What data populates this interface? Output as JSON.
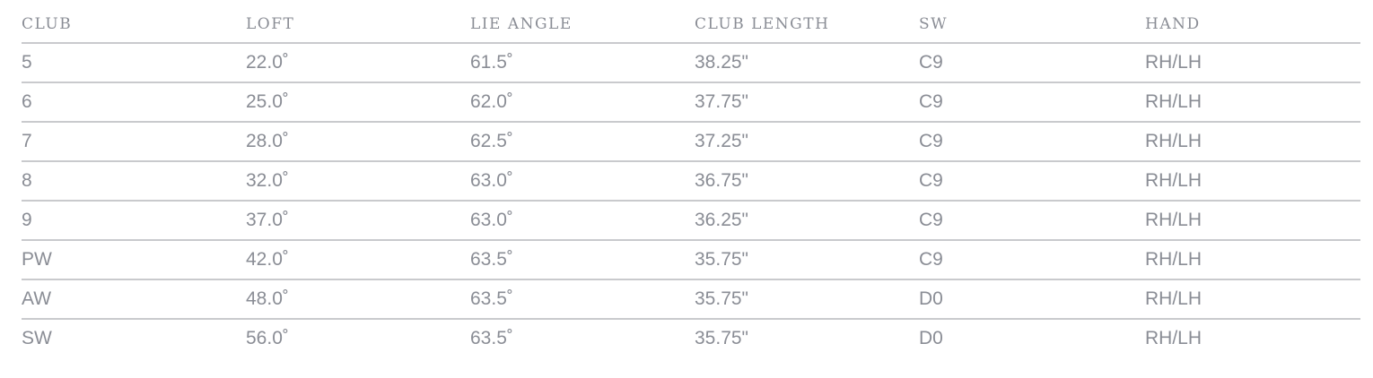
{
  "table": {
    "headers": [
      "CLUB",
      "LOFT",
      "LIE ANGLE",
      "CLUB LENGTH",
      "SW",
      "HAND"
    ],
    "rows": [
      [
        "5",
        "22.0˚",
        "61.5˚",
        "38.25\"",
        "C9",
        "RH/LH"
      ],
      [
        "6",
        "25.0˚",
        "62.0˚",
        "37.75\"",
        "C9",
        "RH/LH"
      ],
      [
        "7",
        "28.0˚",
        "62.5˚",
        "37.25\"",
        "C9",
        "RH/LH"
      ],
      [
        "8",
        "32.0˚",
        "63.0˚",
        "36.75\"",
        "C9",
        "RH/LH"
      ],
      [
        "9",
        "37.0˚",
        "63.0˚",
        "36.25\"",
        "C9",
        "RH/LH"
      ],
      [
        "PW",
        "42.0˚",
        "63.5˚",
        "35.75\"",
        "C9",
        "RH/LH"
      ],
      [
        "AW",
        "48.0˚",
        "63.5˚",
        "35.75\"",
        "D0",
        "RH/LH"
      ],
      [
        "SW",
        "56.0˚",
        "63.5˚",
        "35.75\"",
        "D0",
        "RH/LH"
      ]
    ]
  },
  "colors": {
    "text": "#8a8d95",
    "rule": "#c9cacd",
    "background": "#ffffff"
  }
}
